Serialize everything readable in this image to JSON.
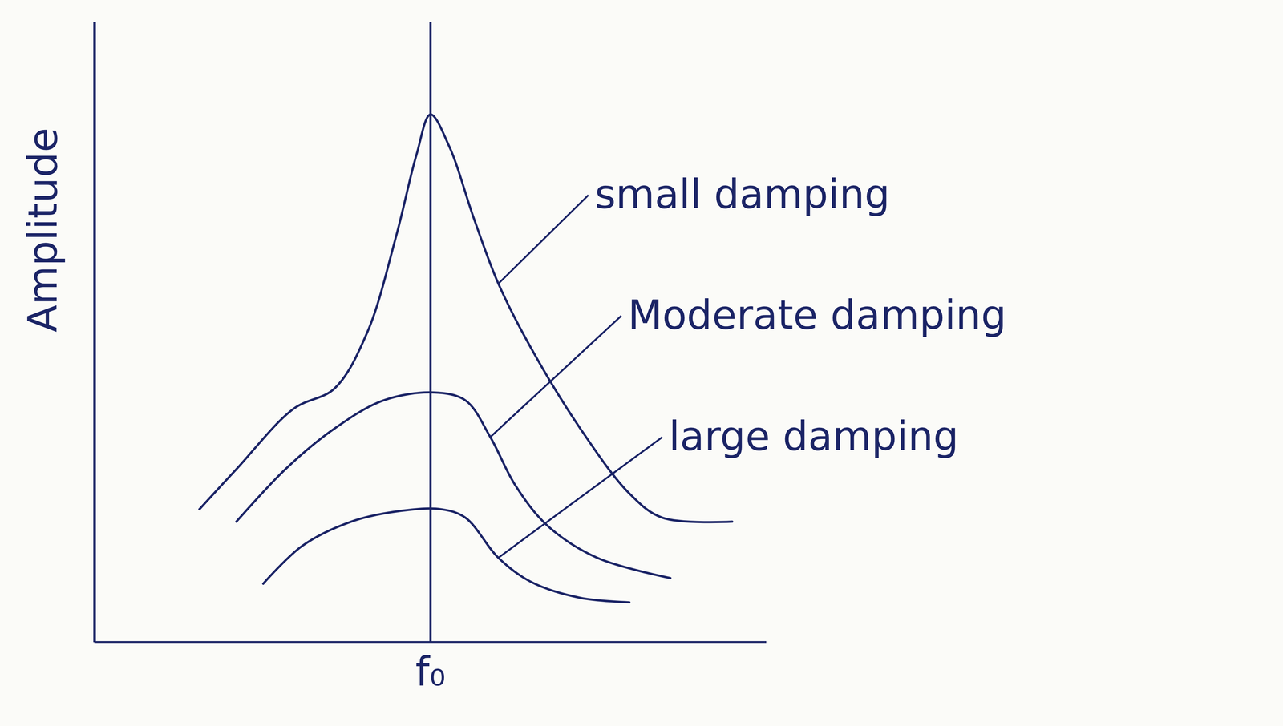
{
  "chart_data": {
    "type": "line",
    "y_label": "Amplitude",
    "xlim": [
      0,
      10
    ],
    "ylim": [
      0,
      11
    ],
    "xticks": [
      {
        "value": 5,
        "label": "f₀"
      }
    ],
    "tick_labels": "x",
    "series": [
      {
        "name": "small damping",
        "color": "#1b2466",
        "x": [
          1.56,
          2.11,
          2.96,
          3.57,
          4.06,
          4.49,
          4.79,
          5.0,
          5.28,
          5.65,
          6.01,
          6.5,
          7.23,
          7.96,
          8.45,
          9.49
        ],
        "values": [
          2.36,
          3.07,
          4.14,
          4.5,
          5.5,
          7.21,
          8.64,
          9.36,
          8.79,
          7.5,
          6.36,
          5.21,
          3.79,
          2.64,
          2.21,
          2.14
        ]
      },
      {
        "name": "Moderate damping",
        "color": "#1b2466",
        "x": [
          2.11,
          2.84,
          3.57,
          4.3,
          5.04,
          5.52,
          5.89,
          6.26,
          6.74,
          7.48,
          8.57
        ],
        "values": [
          2.14,
          3.07,
          3.79,
          4.29,
          4.43,
          4.29,
          3.64,
          2.79,
          2.07,
          1.5,
          1.14
        ]
      },
      {
        "name": "large damping",
        "color": "#1b2466",
        "x": [
          2.51,
          3.09,
          3.82,
          4.55,
          5.16,
          5.52,
          6.01,
          6.5,
          7.23,
          7.96
        ],
        "values": [
          1.04,
          1.71,
          2.14,
          2.33,
          2.36,
          2.21,
          1.5,
          1.07,
          0.79,
          0.71
        ]
      }
    ],
    "annotations": [
      {
        "text": "small damping",
        "x": 7.35,
        "y": 7.93,
        "target_x": 6.01,
        "target_y": 6.36
      },
      {
        "text": "Moderate damping",
        "x": 7.84,
        "y": 5.79,
        "target_x": 5.89,
        "target_y": 3.64
      },
      {
        "text": "large damping",
        "x": 8.45,
        "y": 3.64,
        "target_x": 6.01,
        "target_y": 1.5
      }
    ]
  }
}
